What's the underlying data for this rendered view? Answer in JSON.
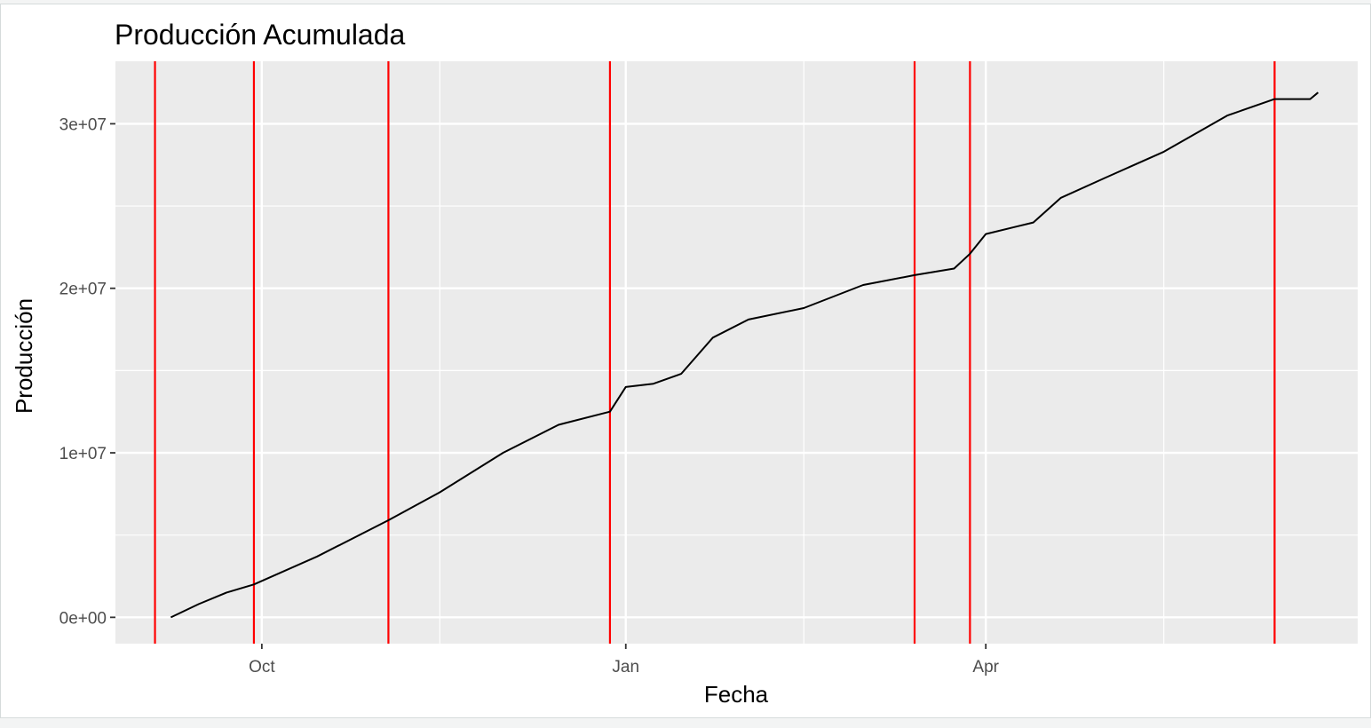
{
  "chart_data": {
    "type": "line",
    "title": "Producción Acumulada",
    "xlabel": "Fecha",
    "ylabel": "Producción",
    "x_ticks": [
      {
        "date": "2023-10-01",
        "label": "Oct"
      },
      {
        "date": "2024-01-01",
        "label": "Jan"
      },
      {
        "date": "2024-04-01",
        "label": "Apr"
      }
    ],
    "x_minor_ticks": [
      "2023-11-15",
      "2024-02-15",
      "2024-05-16"
    ],
    "xlim": [
      "2023-08-25",
      "2024-07-04"
    ],
    "y_ticks": [
      {
        "value": 0,
        "label": "0e+00"
      },
      {
        "value": 10000000,
        "label": "1e+07"
      },
      {
        "value": 20000000,
        "label": "2e+07"
      },
      {
        "value": 30000000,
        "label": "3e+07"
      }
    ],
    "ylim": [
      -1600000,
      33800000
    ],
    "grid": true,
    "legend": "none",
    "colors": {
      "panel": "#ebebeb",
      "grid": "#ffffff",
      "line": "#000000",
      "vlines": "#ff0000"
    },
    "vlines": [
      "2023-09-04",
      "2023-09-29",
      "2023-11-02",
      "2023-12-28",
      "2024-03-14",
      "2024-03-28",
      "2024-06-13"
    ],
    "series": [
      {
        "x": [
          "2023-09-08",
          "2023-09-15",
          "2023-09-22",
          "2023-09-29",
          "2023-10-15",
          "2023-11-02",
          "2023-11-15",
          "2023-12-01",
          "2023-12-15",
          "2023-12-28",
          "2024-01-01",
          "2024-01-08",
          "2024-01-15",
          "2024-01-23",
          "2024-02-01",
          "2024-02-15",
          "2024-03-01",
          "2024-03-14",
          "2024-03-24",
          "2024-03-28",
          "2024-04-01",
          "2024-04-13",
          "2024-04-20",
          "2024-05-01",
          "2024-05-16",
          "2024-06-01",
          "2024-06-13",
          "2024-06-22",
          "2024-06-24"
        ],
        "y": [
          0,
          800000,
          1500000,
          2000000,
          3700000,
          5900000,
          7600000,
          10000000,
          11700000,
          12500000,
          14000000,
          14200000,
          14800000,
          17000000,
          18100000,
          18800000,
          20200000,
          20800000,
          21200000,
          22100000,
          23300000,
          24000000,
          25500000,
          26700000,
          28300000,
          30500000,
          31500000,
          31500000,
          31900000
        ]
      }
    ]
  }
}
